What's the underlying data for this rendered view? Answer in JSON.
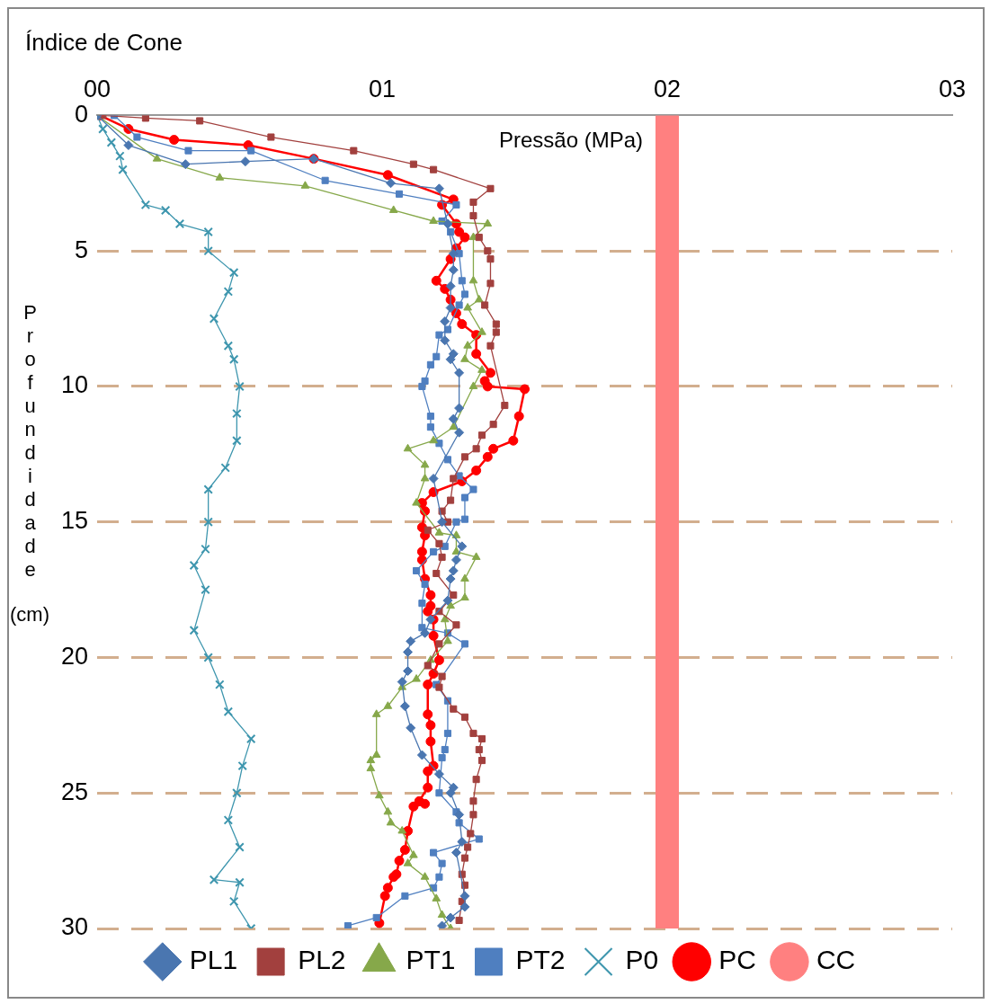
{
  "chart_data": {
    "type": "line",
    "title": "Índice de Cone",
    "xlabel": "Pressão (MPa)",
    "ylabel": "Profundidade (cm)",
    "xlim": [
      0,
      3
    ],
    "xticks": [
      {
        "value": 0,
        "label": "00"
      },
      {
        "value": 1,
        "label": "01"
      },
      {
        "value": 2,
        "label": "02"
      },
      {
        "value": 3,
        "label": "03"
      }
    ],
    "ylim": [
      30,
      0
    ],
    "yticks": [
      0,
      5,
      10,
      15,
      20,
      25,
      30
    ],
    "grid": "y",
    "legend": "bottom",
    "line_style": "solid",
    "series": [
      {
        "name": "PL1",
        "color": "#4a76b0",
        "marker": "diamond",
        "x": [
          0,
          0.11,
          0.31,
          0.52,
          0.76,
          1.03,
          1.2,
          1.23,
          1.25,
          1.25,
          1.24,
          1.24,
          1.22,
          1.22,
          1.25,
          1.24,
          1.27,
          1.27,
          1.25,
          1.27,
          1.18,
          1.21,
          1.28,
          1.26,
          1.25,
          1.24,
          1.23,
          1.17,
          1.15,
          1.1,
          1.09,
          1.09,
          1.07,
          1.08,
          1.1,
          1.14,
          1.2,
          1.25,
          1.24,
          1.27,
          1.28,
          1.26,
          1.29,
          1.29,
          1.24,
          1.21
        ],
        "values": [
          0,
          1.1,
          1.8,
          1.7,
          1.6,
          2.5,
          2.7,
          4,
          5.1,
          5.7,
          6.3,
          7.1,
          7.6,
          8.3,
          8.8,
          9,
          9.5,
          10.8,
          11.2,
          11.7,
          13.4,
          15,
          15.9,
          16.4,
          16.8,
          17.1,
          17.9,
          18.6,
          19.1,
          19.4,
          19.8,
          20.5,
          20.9,
          21.8,
          22.6,
          23.6,
          24.3,
          24.8,
          25,
          25.8,
          26.8,
          27.2,
          28.8,
          29.2,
          29.6,
          29.9
        ]
      },
      {
        "name": "PL2",
        "color": "#a2403e",
        "marker": "square",
        "x": [
          0.02,
          0.17,
          0.36,
          0.61,
          0.9,
          1.11,
          1.18,
          1.38,
          1.32,
          1.32,
          1.34,
          1.37,
          1.38,
          1.38,
          1.36,
          1.4,
          1.4,
          1.38,
          1.43,
          1.39,
          1.35,
          1.33,
          1.29,
          1.25,
          1.24,
          1.21,
          1.23,
          1.16,
          1.2,
          1.21,
          1.19,
          1.25,
          1.2,
          1.26,
          1.2,
          1.16,
          1.21,
          1.2,
          1.25,
          1.29,
          1.32,
          1.35,
          1.34,
          1.35,
          1.33,
          1.32,
          1.32,
          1.31,
          1.3,
          1.29,
          1.28,
          1.29,
          1.28,
          1.27
        ],
        "values": [
          0,
          0.1,
          0.2,
          0.8,
          1.3,
          1.8,
          2,
          2.7,
          3.2,
          3.7,
          4.5,
          5,
          5.3,
          6.2,
          7,
          7.7,
          8,
          8.5,
          10.7,
          11.4,
          11.8,
          12.3,
          12.6,
          13.4,
          14.2,
          14.6,
          15,
          15.3,
          15.8,
          16.3,
          16.9,
          17.7,
          18.3,
          18.8,
          19.5,
          20.3,
          20.7,
          21.1,
          21.9,
          22.2,
          22.8,
          23,
          23.4,
          23.8,
          24.5,
          25.3,
          25.8,
          26.5,
          27,
          27.4,
          28,
          28.4,
          29,
          29.7
        ]
      },
      {
        "name": "PT1",
        "color": "#86a84a",
        "marker": "triangle",
        "x": [
          0,
          0.21,
          0.43,
          0.73,
          1.04,
          1.18,
          1.37,
          1.32,
          1.32,
          1.34,
          1.3,
          1.35,
          1.3,
          1.29,
          1.35,
          1.32,
          1.25,
          1.18,
          1.09,
          1.15,
          1.15,
          1.12,
          1.2,
          1.26,
          1.26,
          1.33,
          1.29,
          1.29,
          1.24,
          1.22,
          1.23,
          1.17,
          1.12,
          1.07,
          1.02,
          0.98,
          0.98,
          0.96,
          0.96,
          0.99,
          1.02,
          1.03,
          1.07,
          1.11,
          1.09,
          1.15,
          1.19,
          1.21,
          1.24
        ],
        "values": [
          0,
          1.6,
          2.3,
          2.6,
          3.5,
          3.9,
          4,
          4.5,
          6.1,
          6.8,
          7.1,
          8,
          8.5,
          9,
          9.4,
          10,
          11.5,
          12,
          12.3,
          12.9,
          13.4,
          14.3,
          15.4,
          15.5,
          16.1,
          16.3,
          17.1,
          17.8,
          18.1,
          18.6,
          19.4,
          20.1,
          20.8,
          21.1,
          21.8,
          22.1,
          23.6,
          23.8,
          24.1,
          25.1,
          25.7,
          26.1,
          26.4,
          27.3,
          27.6,
          28.1,
          28.9,
          29.5,
          30
        ]
      },
      {
        "name": "PT2",
        "color": "#4f7fc0",
        "marker": "square",
        "x": [
          0.06,
          0.14,
          0.32,
          0.54,
          0.8,
          1.06,
          1.26,
          1.21,
          1.24,
          1.27,
          1.28,
          1.29,
          1.27,
          1.23,
          1.2,
          1.19,
          1.17,
          1.15,
          1.14,
          1.17,
          1.17,
          1.2,
          1.23,
          1.27,
          1.32,
          1.29,
          1.29,
          1.26,
          1.22,
          1.18,
          1.12,
          1.15,
          1.14,
          1.14,
          1.23,
          1.29,
          1.19,
          1.23,
          1.23,
          1.22,
          1.21,
          1.2,
          1.26,
          1.27,
          1.34,
          1.18,
          1.21,
          1.2,
          1.18,
          1.08,
          0.98,
          0.88
        ],
        "values": [
          0,
          0.8,
          1.3,
          1.3,
          2.4,
          2.9,
          3.3,
          3.9,
          4.3,
          5.1,
          6.1,
          6.6,
          7,
          7.9,
          8.1,
          8.9,
          9.2,
          9.8,
          10,
          11.1,
          11.5,
          12.1,
          12.7,
          13.3,
          13.8,
          14.1,
          14.9,
          15,
          15.9,
          16.1,
          16.8,
          17.3,
          18,
          18.9,
          19.1,
          19.5,
          21,
          21.6,
          22.8,
          23.4,
          23.7,
          25,
          25.7,
          26.1,
          26.7,
          27.2,
          27.6,
          28.1,
          28.5,
          28.8,
          29.6,
          29.9
        ]
      },
      {
        "name": "P0",
        "color": "#3e96ae",
        "marker": "cross",
        "x": [
          0,
          0.02,
          0.05,
          0.08,
          0.09,
          0.17,
          0.24,
          0.29,
          0.39,
          0.39,
          0.48,
          0.46,
          0.41,
          0.46,
          0.48,
          0.5,
          0.49,
          0.49,
          0.45,
          0.39,
          0.39,
          0.38,
          0.34,
          0.38,
          0.34,
          0.39,
          0.43,
          0.46,
          0.54,
          0.51,
          0.49,
          0.46,
          0.5,
          0.41,
          0.5,
          0.48,
          0.54
        ],
        "values": [
          0,
          0.5,
          1,
          1.5,
          2,
          3.3,
          3.5,
          4,
          4.3,
          5,
          5.8,
          6.5,
          7.5,
          8.5,
          9,
          10,
          11,
          12,
          13,
          13.8,
          15,
          16,
          16.6,
          17.5,
          19,
          20,
          21,
          22,
          23,
          24,
          25,
          26,
          27,
          28.2,
          28.3,
          29,
          30
        ]
      },
      {
        "name": "PC",
        "color": "#ff0000",
        "marker": "circle",
        "x": [
          0.01,
          0.11,
          0.27,
          0.53,
          0.76,
          1.02,
          1.25,
          1.21,
          1.26,
          1.27,
          1.29,
          1.26,
          1.24,
          1.19,
          1.22,
          1.24,
          1.26,
          1.28,
          1.33,
          1.33,
          1.38,
          1.36,
          1.37,
          1.5,
          1.48,
          1.46,
          1.39,
          1.37,
          1.33,
          1.28,
          1.18,
          1.14,
          1.15,
          1.14,
          1.15,
          1.14,
          1.14,
          1.15,
          1.17,
          1.17,
          1.16,
          1.18,
          1.18,
          1.2,
          1.18,
          1.16,
          1.16,
          1.17,
          1.17,
          1.18,
          1.16,
          1.16,
          1.13,
          1.15,
          1.11,
          1.09,
          1.08,
          1.06,
          1.05,
          1.04,
          1.02,
          1.01,
          0.99
        ],
        "values": [
          0,
          0.5,
          0.9,
          1.1,
          1.6,
          2.2,
          3.1,
          3.3,
          4,
          4.3,
          4.5,
          4.9,
          5.3,
          6.1,
          6.4,
          6.8,
          7.3,
          7.7,
          8.1,
          8.8,
          9.5,
          9.8,
          10,
          10.1,
          11.1,
          12,
          12.3,
          12.6,
          13.1,
          13.5,
          13.9,
          14.3,
          14.6,
          15.2,
          15.5,
          16.1,
          16.4,
          17.1,
          17.7,
          18.1,
          18.3,
          18.6,
          19.2,
          20.1,
          20.6,
          21,
          22.1,
          22.5,
          23.1,
          24,
          24.2,
          24.8,
          25.3,
          25.4,
          25.5,
          26.4,
          27.1,
          27.5,
          28,
          28.1,
          28.5,
          28.8,
          29.8
        ]
      },
      {
        "name": "CC",
        "color": "#ff8080",
        "marker": "none",
        "x": [
          2,
          2
        ],
        "values": [
          0,
          30
        ]
      }
    ]
  }
}
